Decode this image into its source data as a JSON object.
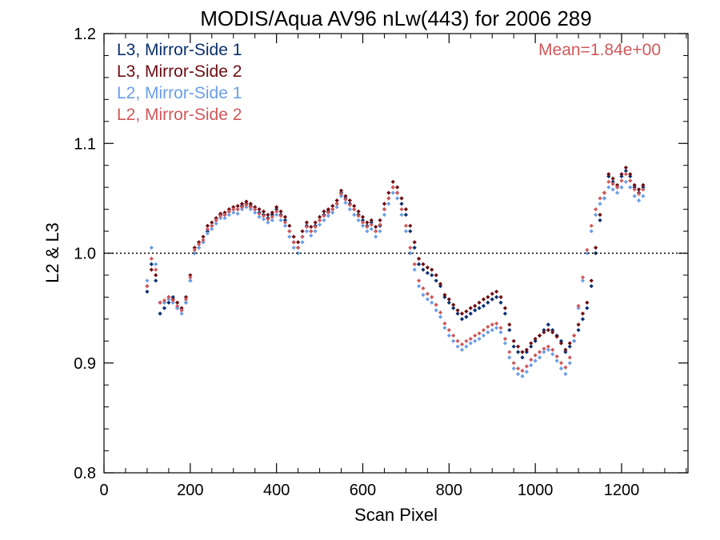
{
  "chart_data": {
    "type": "scatter",
    "title": "MODIS/Aqua AV96 nLw(443) for 2006 289",
    "xlabel": "Scan Pixel",
    "ylabel": "L2 & L3",
    "xlim": [
      0,
      1354
    ],
    "ylim": [
      0.8,
      1.2
    ],
    "x_ticks": [
      "0",
      "200",
      "400",
      "600",
      "800",
      "1000",
      "1200"
    ],
    "y_ticks": [
      "0.8",
      "0.9",
      "1.0",
      "1.1",
      "1.2"
    ],
    "reference_line": 1.0,
    "annotation": "Mean=1.84e+00",
    "annotation_color": "#d0585a",
    "legend_position": "top-left",
    "x": [
      100,
      110,
      120,
      130,
      140,
      150,
      160,
      170,
      180,
      190,
      200,
      210,
      220,
      230,
      240,
      250,
      260,
      270,
      280,
      290,
      300,
      310,
      320,
      330,
      340,
      350,
      360,
      370,
      380,
      390,
      400,
      410,
      420,
      430,
      440,
      450,
      460,
      470,
      480,
      490,
      500,
      510,
      520,
      530,
      540,
      550,
      560,
      570,
      580,
      590,
      600,
      610,
      620,
      630,
      640,
      650,
      660,
      670,
      680,
      690,
      700,
      710,
      720,
      730,
      740,
      750,
      760,
      770,
      780,
      790,
      800,
      810,
      820,
      830,
      840,
      850,
      860,
      870,
      880,
      890,
      900,
      910,
      920,
      930,
      940,
      950,
      960,
      970,
      980,
      990,
      1000,
      1010,
      1020,
      1030,
      1040,
      1050,
      1060,
      1070,
      1080,
      1090,
      1100,
      1110,
      1120,
      1130,
      1140,
      1150,
      1160,
      1170,
      1180,
      1190,
      1200,
      1210,
      1220,
      1230,
      1240,
      1250
    ],
    "series": [
      {
        "name": "L3, Mirror-Side 1",
        "color": "#0a2f6e",
        "values": [
          0.965,
          0.99,
          0.975,
          0.945,
          0.95,
          0.955,
          0.96,
          0.95,
          0.948,
          0.955,
          0.975,
          1.0,
          1.005,
          1.01,
          1.02,
          1.025,
          1.03,
          1.035,
          1.035,
          1.038,
          1.04,
          1.04,
          1.043,
          1.045,
          1.043,
          1.04,
          1.037,
          1.035,
          1.032,
          1.035,
          1.04,
          1.035,
          1.03,
          1.02,
          1.01,
          1.005,
          1.015,
          1.025,
          1.02,
          1.025,
          1.03,
          1.035,
          1.038,
          1.04,
          1.045,
          1.055,
          1.05,
          1.045,
          1.04,
          1.035,
          1.03,
          1.025,
          1.028,
          1.02,
          1.025,
          1.04,
          1.05,
          1.06,
          1.055,
          1.045,
          1.035,
          1.02,
          1.005,
          0.99,
          0.985,
          0.982,
          0.98,
          0.975,
          0.97,
          0.96,
          0.955,
          0.95,
          0.945,
          0.94,
          0.942,
          0.945,
          0.948,
          0.95,
          0.952,
          0.955,
          0.958,
          0.96,
          0.955,
          0.945,
          0.93,
          0.915,
          0.91,
          0.905,
          0.91,
          0.915,
          0.92,
          0.925,
          0.93,
          0.935,
          0.93,
          0.925,
          0.92,
          0.91,
          0.915,
          0.92,
          0.93,
          0.94,
          0.95,
          0.97,
          1.0,
          1.03,
          1.05,
          1.07,
          1.065,
          1.06,
          1.07,
          1.075,
          1.07,
          1.06,
          1.055,
          1.06
        ]
      },
      {
        "name": "L3, Mirror-Side 2",
        "color": "#6e0c12",
        "values": [
          0.97,
          0.985,
          0.98,
          0.955,
          0.955,
          0.96,
          0.958,
          0.955,
          0.95,
          0.96,
          0.98,
          1.005,
          1.01,
          1.015,
          1.025,
          1.028,
          1.032,
          1.036,
          1.037,
          1.04,
          1.042,
          1.043,
          1.045,
          1.047,
          1.045,
          1.042,
          1.04,
          1.038,
          1.035,
          1.037,
          1.042,
          1.038,
          1.033,
          1.025,
          1.015,
          1.01,
          1.02,
          1.028,
          1.024,
          1.028,
          1.033,
          1.038,
          1.04,
          1.043,
          1.048,
          1.057,
          1.052,
          1.048,
          1.043,
          1.038,
          1.033,
          1.028,
          1.03,
          1.024,
          1.03,
          1.045,
          1.055,
          1.065,
          1.06,
          1.05,
          1.04,
          1.025,
          1.01,
          0.995,
          0.99,
          0.987,
          0.985,
          0.98,
          0.972,
          0.962,
          0.958,
          0.953,
          0.948,
          0.945,
          0.947,
          0.95,
          0.952,
          0.955,
          0.958,
          0.96,
          0.963,
          0.965,
          0.96,
          0.95,
          0.935,
          0.92,
          0.915,
          0.91,
          0.912,
          0.918,
          0.922,
          0.925,
          0.928,
          0.93,
          0.928,
          0.924,
          0.918,
          0.912,
          0.918,
          0.925,
          0.935,
          0.945,
          0.955,
          0.975,
          1.005,
          1.035,
          1.055,
          1.072,
          1.068,
          1.062,
          1.072,
          1.078,
          1.072,
          1.062,
          1.058,
          1.062
        ]
      },
      {
        "name": "L2, Mirror-Side 1",
        "color": "#6a9ee8",
        "values": [
          0.975,
          1.005,
          0.99,
          0.955,
          0.955,
          0.958,
          0.955,
          0.95,
          0.945,
          0.955,
          0.975,
          1.0,
          1.005,
          1.01,
          1.018,
          1.022,
          1.027,
          1.032,
          1.032,
          1.035,
          1.037,
          1.036,
          1.04,
          1.042,
          1.04,
          1.037,
          1.033,
          1.031,
          1.028,
          1.03,
          1.035,
          1.03,
          1.025,
          1.015,
          1.005,
          1.0,
          1.01,
          1.02,
          1.016,
          1.02,
          1.026,
          1.03,
          1.034,
          1.037,
          1.042,
          1.052,
          1.046,
          1.04,
          1.035,
          1.03,
          1.025,
          1.02,
          1.022,
          1.015,
          1.02,
          1.035,
          1.045,
          1.055,
          1.05,
          1.035,
          1.02,
          1.0,
          0.985,
          0.97,
          0.962,
          0.958,
          0.955,
          0.948,
          0.942,
          0.932,
          0.925,
          0.92,
          0.915,
          0.912,
          0.915,
          0.918,
          0.92,
          0.922,
          0.925,
          0.928,
          0.93,
          0.932,
          0.928,
          0.918,
          0.905,
          0.895,
          0.89,
          0.888,
          0.892,
          0.898,
          0.902,
          0.905,
          0.91,
          0.912,
          0.908,
          0.902,
          0.895,
          0.89,
          0.9,
          0.92,
          0.95,
          0.975,
          1.0,
          1.02,
          1.035,
          1.045,
          1.05,
          1.06,
          1.058,
          1.055,
          1.06,
          1.065,
          1.06,
          1.052,
          1.048,
          1.052
        ]
      },
      {
        "name": "L2, Mirror-Side 2",
        "color": "#d0585a",
        "values": [
          0.97,
          0.995,
          0.985,
          0.955,
          0.957,
          0.96,
          0.957,
          0.952,
          0.948,
          0.958,
          0.978,
          1.003,
          1.008,
          1.012,
          1.022,
          1.025,
          1.03,
          1.034,
          1.035,
          1.038,
          1.04,
          1.04,
          1.042,
          1.044,
          1.042,
          1.04,
          1.036,
          1.034,
          1.031,
          1.033,
          1.038,
          1.034,
          1.028,
          1.02,
          1.01,
          1.005,
          1.015,
          1.024,
          1.02,
          1.024,
          1.03,
          1.034,
          1.037,
          1.04,
          1.045,
          1.054,
          1.049,
          1.044,
          1.04,
          1.034,
          1.028,
          1.024,
          1.026,
          1.02,
          1.026,
          1.04,
          1.05,
          1.06,
          1.055,
          1.04,
          1.025,
          1.005,
          0.99,
          0.975,
          0.968,
          0.963,
          0.96,
          0.953,
          0.946,
          0.936,
          0.93,
          0.925,
          0.92,
          0.917,
          0.92,
          0.922,
          0.925,
          0.927,
          0.93,
          0.933,
          0.935,
          0.936,
          0.932,
          0.922,
          0.91,
          0.9,
          0.895,
          0.893,
          0.897,
          0.903,
          0.907,
          0.91,
          0.913,
          0.915,
          0.912,
          0.906,
          0.9,
          0.896,
          0.905,
          0.925,
          0.952,
          0.978,
          1.003,
          1.025,
          1.04,
          1.05,
          1.055,
          1.065,
          1.063,
          1.06,
          1.066,
          1.072,
          1.066,
          1.058,
          1.054,
          1.058
        ]
      }
    ]
  }
}
